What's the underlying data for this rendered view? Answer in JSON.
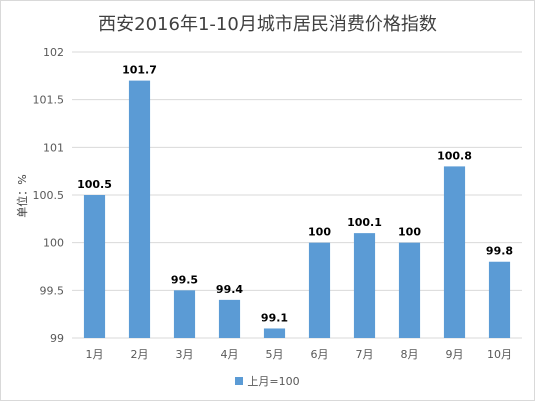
{
  "chart_data": {
    "type": "bar",
    "title": "西安2016年1-10月城市居民消费价格指数",
    "ylabel": "单位：%",
    "xlabel": "",
    "categories": [
      "1月",
      "2月",
      "3月",
      "4月",
      "5月",
      "6月",
      "7月",
      "8月",
      "9月",
      "10月"
    ],
    "series": [
      {
        "name": "上月=100",
        "values": [
          100.5,
          101.7,
          99.5,
          99.4,
          99.1,
          100,
          100.1,
          100,
          100.8,
          99.8
        ],
        "color": "#5b9bd5"
      }
    ],
    "ylim": [
      99,
      102
    ],
    "yticks": [
      "99",
      "99.5",
      "100",
      "100.5",
      "101",
      "101.5",
      "102"
    ],
    "data_labels": [
      "100.5",
      "101.7",
      "99.5",
      "99.4",
      "99.1",
      "100",
      "100.1",
      "100",
      "100.8",
      "99.8"
    ],
    "grid": true,
    "legend_position": "bottom"
  }
}
